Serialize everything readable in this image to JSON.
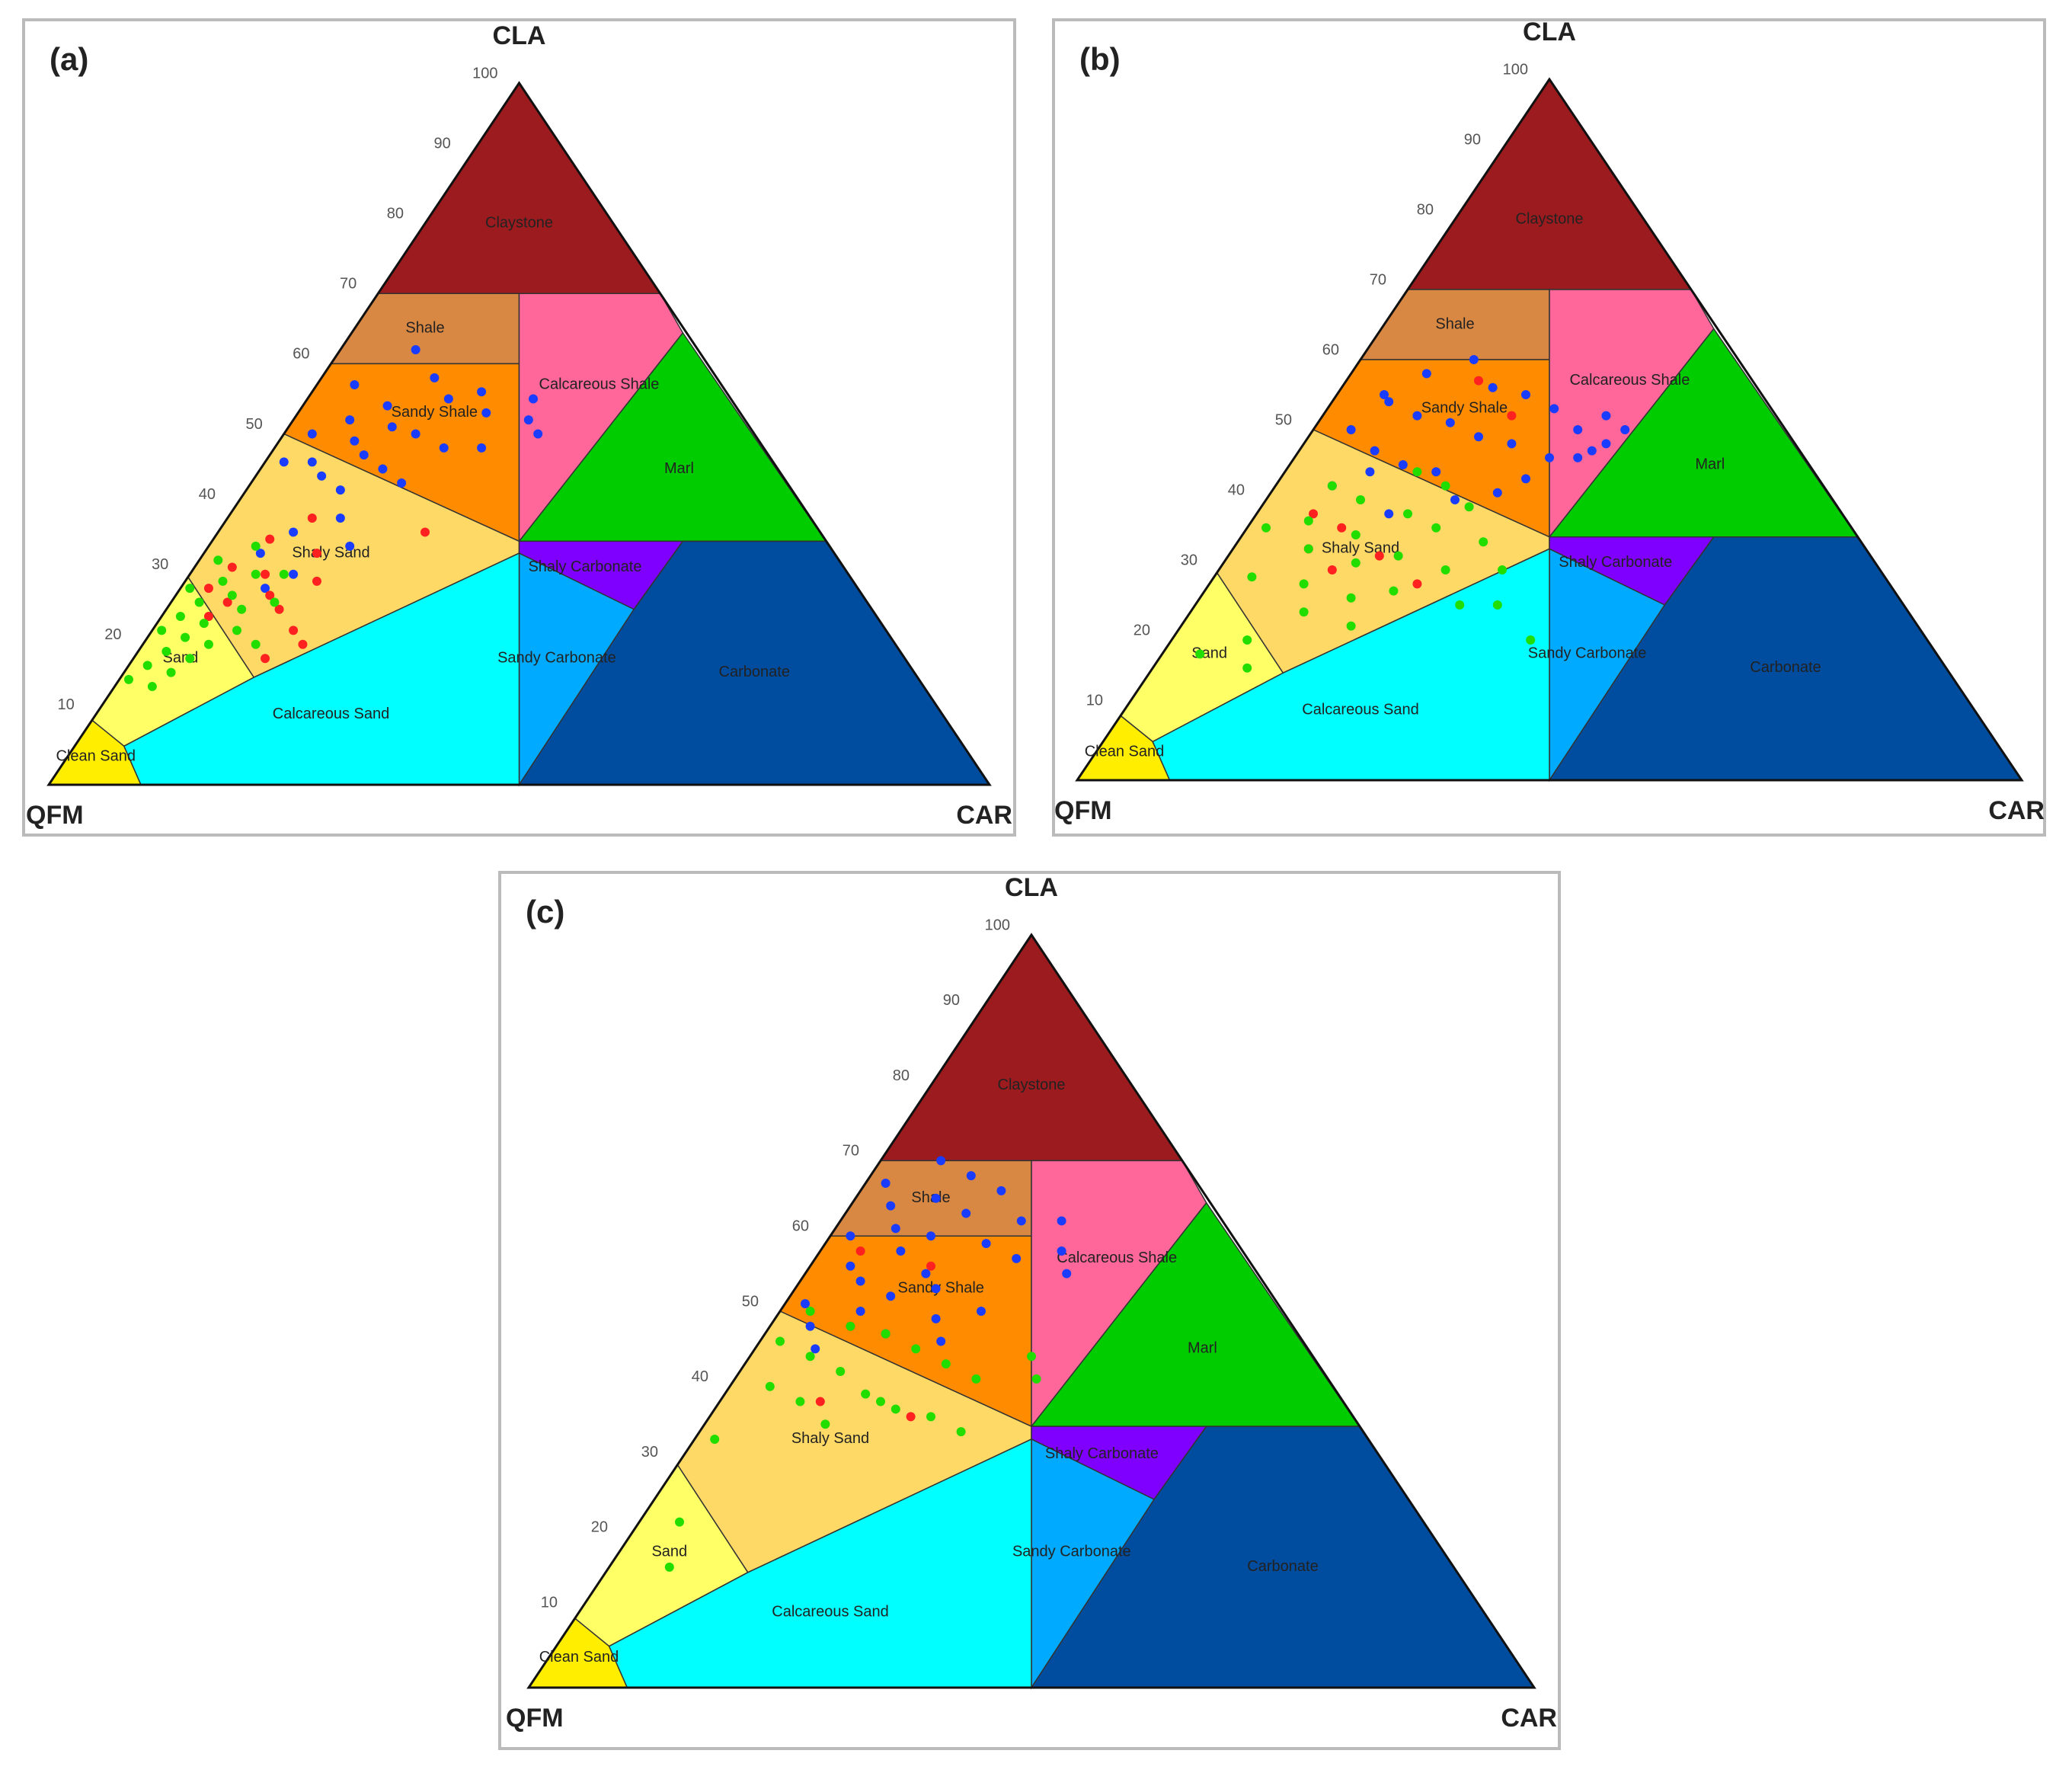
{
  "chart_data": [
    {
      "type": "ternary",
      "title": "(a)",
      "apex_labels": [
        "CLA",
        "QFM",
        "CAR"
      ],
      "ticks": [
        10,
        20,
        30,
        40,
        50,
        60,
        70,
        80,
        90,
        100
      ],
      "regions": [
        "Claystone",
        "Shale",
        "Sandy Shale",
        "Calcareous Shale",
        "Marl",
        "Shaly Sand",
        "Shaly Carbonate",
        "Sand",
        "Sandy Carbonate",
        "Carbonate",
        "Clean Sand",
        "Calcareous Sand"
      ],
      "region_colors": [
        "#9b1b1f",
        "#d98843",
        "#ff8c00",
        "#ff6699",
        "#00cc00",
        "#ffd966",
        "#8000ff",
        "#ffff66",
        "#00aaff",
        "#004c9e",
        "#ffee00",
        "#00ffff"
      ],
      "series": [
        {
          "color": "#1a3cff",
          "cla": [
            62,
            58,
            57,
            55,
            54,
            53,
            52,
            51,
            50,
            50,
            49,
            48,
            47,
            46,
            45,
            44,
            43,
            55,
            52,
            48,
            46,
            42,
            38,
            36,
            34,
            33,
            30,
            28,
            56,
            50
          ],
          "car": [
            8,
            12,
            4,
            15,
            9,
            20,
            6,
            11,
            3,
            14,
            8,
            18,
            10,
            5,
            13,
            7,
            16,
            24,
            25,
            22,
            2,
            10,
            12,
            8,
            15,
            6,
            11,
            9,
            18,
            27
          ]
        },
        {
          "color": "#ff2020",
          "cla": [
            38,
            35,
            33,
            31,
            30,
            29,
            28,
            27,
            26,
            25,
            24,
            22,
            20,
            18,
            36
          ],
          "car": [
            9,
            6,
            12,
            4,
            8,
            14,
            3,
            10,
            6,
            12,
            5,
            15,
            17,
            14,
            22
          ]
        },
        {
          "color": "#22dd00",
          "cla": [
            34,
            32,
            30,
            29,
            28,
            27,
            26,
            25,
            24,
            23,
            22,
            21,
            20,
            19,
            18,
            17,
            16,
            15,
            14,
            30,
            26,
            22,
            20
          ],
          "car": [
            5,
            2,
            7,
            4,
            1,
            6,
            3,
            8,
            2,
            5,
            1,
            4,
            7,
            3,
            6,
            2,
            5,
            1,
            4,
            10,
            11,
            9,
            12
          ]
        }
      ]
    },
    {
      "type": "ternary",
      "title": "(b)",
      "apex_labels": [
        "CLA",
        "QFM",
        "CAR"
      ],
      "ticks": [
        10,
        20,
        30,
        40,
        50,
        60,
        70,
        80,
        90,
        100
      ],
      "regions": [
        "Claystone",
        "Shale",
        "Sandy Shale",
        "Calcareous Shale",
        "Marl",
        "Shaly Sand",
        "Shaly Carbonate",
        "Sand",
        "Sandy Carbonate",
        "Carbonate",
        "Clean Sand",
        "Calcareous Sand"
      ],
      "region_colors": [
        "#9b1b1f",
        "#d98843",
        "#ff8c00",
        "#ff6699",
        "#00cc00",
        "#ffd966",
        "#8000ff",
        "#ffff66",
        "#00aaff",
        "#004c9e",
        "#ffee00",
        "#00ffff"
      ],
      "series": [
        {
          "color": "#1a3cff",
          "cla": [
            60,
            58,
            56,
            55,
            54,
            53,
            52,
            51,
            50,
            50,
            49,
            48,
            47,
            46,
            45,
            44,
            43,
            42,
            40,
            38,
            52,
            48,
            46,
            44,
            50,
            47,
            55,
            41
          ],
          "car": [
            12,
            8,
            16,
            20,
            6,
            24,
            10,
            14,
            28,
            4,
            18,
            22,
            8,
            30,
            12,
            16,
            26,
            6,
            20,
            14,
            30,
            32,
            27,
            9,
            33,
            31,
            5,
            24
          ]
        },
        {
          "color": "#ff2020",
          "cla": [
            57,
            52,
            38,
            36,
            33,
            32,
            30,
            28
          ],
          "car": [
            14,
            20,
            6,
            10,
            8,
            16,
            12,
            22
          ]
        },
        {
          "color": "#22dd00",
          "cla": [
            44,
            42,
            40,
            39,
            38,
            37,
            36,
            35,
            34,
            33,
            32,
            31,
            30,
            29,
            28,
            27,
            26,
            25,
            24,
            22,
            20,
            18,
            16,
            42,
            36,
            30,
            25,
            20
          ],
          "car": [
            14,
            18,
            10,
            22,
            16,
            6,
            20,
            12,
            26,
            8,
            18,
            14,
            24,
            4,
            10,
            20,
            16,
            28,
            12,
            18,
            8,
            4,
            10,
            6,
            2,
            30,
            32,
            38
          ]
        }
      ]
    },
    {
      "type": "ternary",
      "title": "(c)",
      "apex_labels": [
        "CLA",
        "QFM",
        "CAR"
      ],
      "ticks": [
        10,
        20,
        30,
        40,
        50,
        60,
        70,
        80,
        90,
        100
      ],
      "regions": [
        "Claystone",
        "Shale",
        "Sandy Shale",
        "Calcareous Shale",
        "Marl",
        "Shaly Sand",
        "Shaly Carbonate",
        "Sand",
        "Sandy Carbonate",
        "Carbonate",
        "Clean Sand",
        "Calcareous Sand"
      ],
      "region_colors": [
        "#9b1b1f",
        "#d98843",
        "#ff8c00",
        "#ff6699",
        "#00cc00",
        "#ffd966",
        "#8000ff",
        "#ffff66",
        "#00aaff",
        "#004c9e",
        "#ffee00",
        "#00ffff"
      ],
      "series": [
        {
          "color": "#1a3cff",
          "cla": [
            70,
            68,
            67,
            66,
            65,
            64,
            63,
            62,
            61,
            60,
            60,
            59,
            58,
            57,
            56,
            55,
            54,
            53,
            52,
            51,
            50,
            49,
            48,
            47,
            46,
            45,
            62,
            58,
            55,
            50
          ],
          "car": [
            6,
            10,
            2,
            14,
            8,
            4,
            12,
            18,
            6,
            10,
            2,
            16,
            8,
            20,
            4,
            12,
            6,
            14,
            10,
            2,
            8,
            16,
            4,
            12,
            18,
            6,
            22,
            24,
            26,
            20
          ]
        },
        {
          "color": "#ff2020",
          "cla": [
            58,
            56,
            48,
            38,
            36
          ],
          "car": [
            4,
            12,
            8,
            10,
            20
          ]
        },
        {
          "color": "#22dd00",
          "cla": [
            50,
            48,
            47,
            46,
            45,
            44,
            43,
            42,
            41,
            40,
            39,
            38,
            37,
            36,
            35,
            34,
            33,
            22,
            16,
            44,
            41,
            38
          ],
          "car": [
            3,
            8,
            12,
            2,
            16,
            6,
            20,
            10,
            24,
            4,
            14,
            8,
            18,
            22,
            12,
            26,
            2,
            4,
            6,
            28,
            30,
            16
          ]
        }
      ]
    }
  ]
}
